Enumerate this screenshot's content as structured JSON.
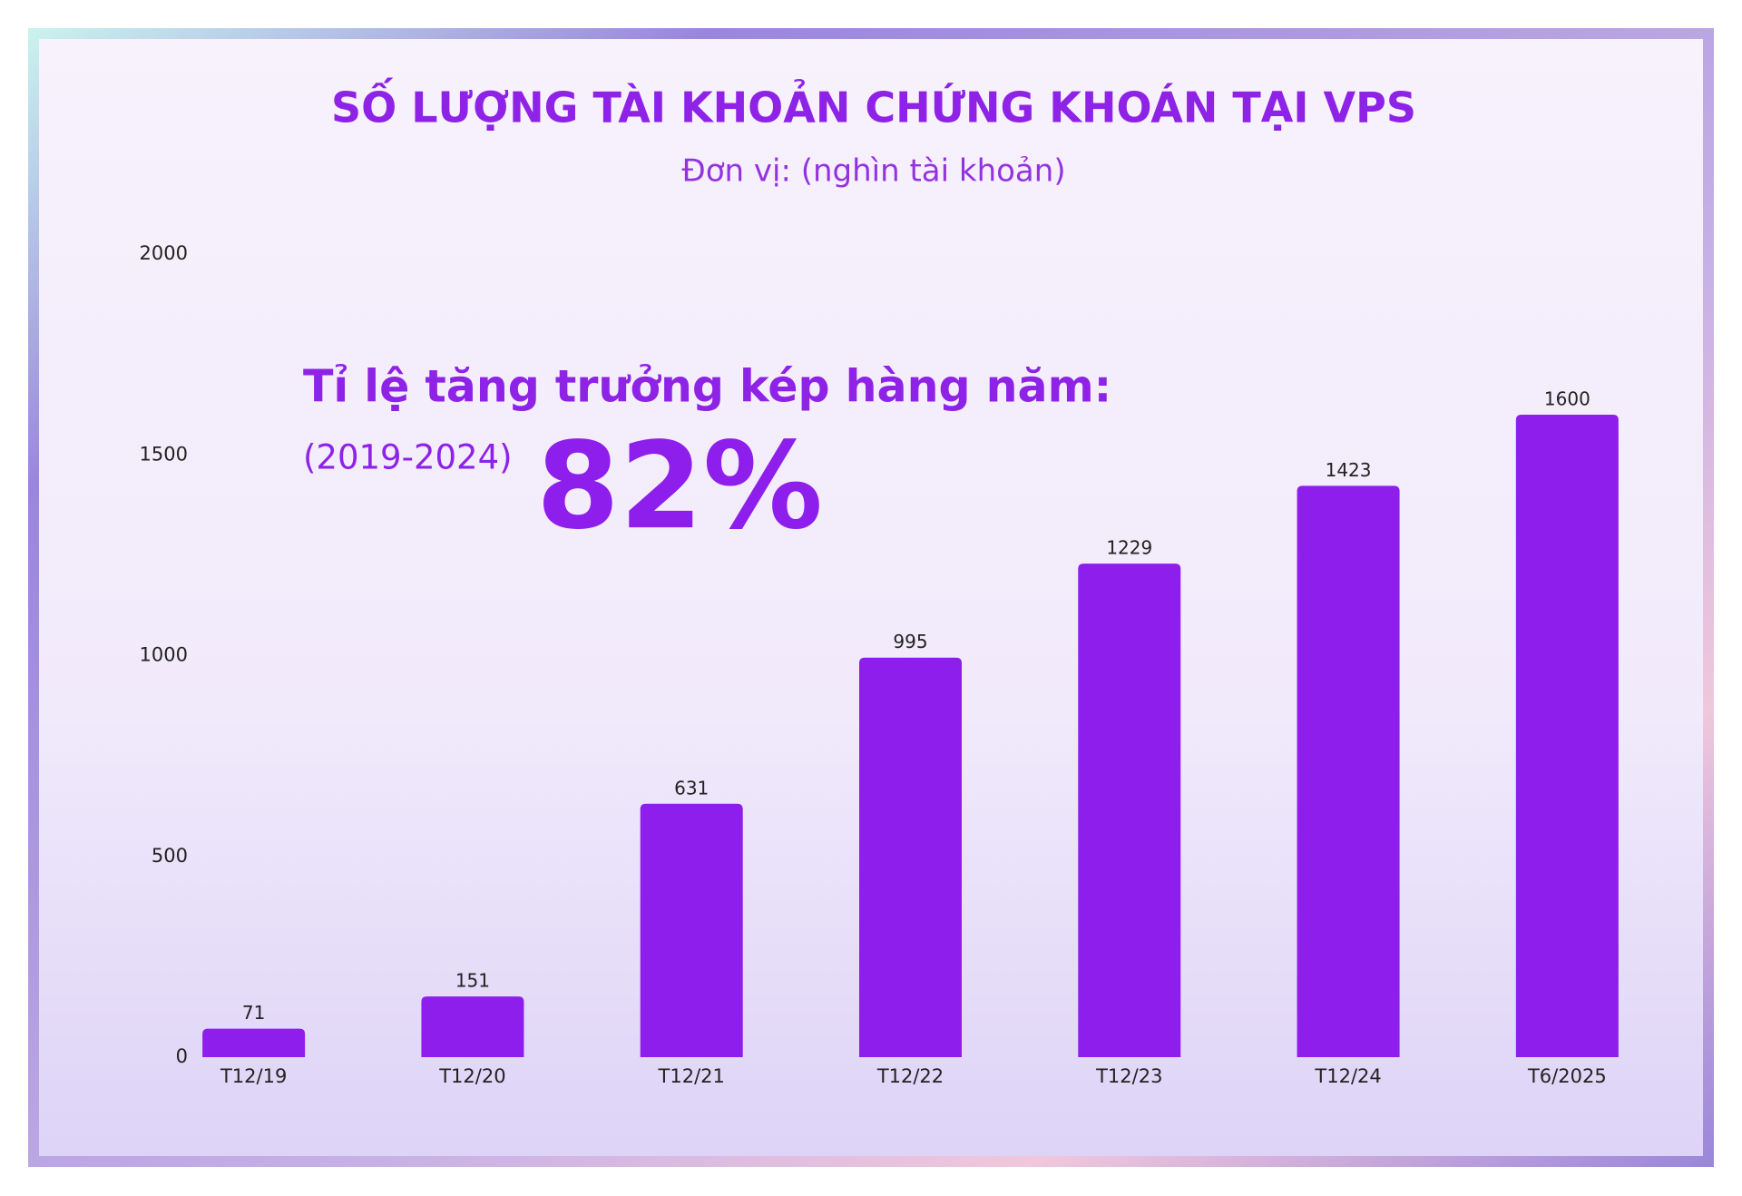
{
  "chart_data": {
    "type": "bar",
    "title": "SỐ LƯỢNG TÀI KHOẢN CHỨNG KHOÁN TẠI VPS",
    "subtitle": "Đơn vị: (nghìn tài khoản)",
    "categories": [
      "T12/19",
      "T12/20",
      "T12/21",
      "T12/22",
      "T12/23",
      "T12/24",
      "T6/2025"
    ],
    "values": [
      71,
      151,
      631,
      995,
      1229,
      1423,
      1600
    ],
    "color": "#8e1eec",
    "ylim": [
      0,
      2000
    ],
    "yticks": [
      0,
      500,
      1000,
      1500,
      2000
    ],
    "grid": false,
    "annotations": [
      "Tỉ lệ tăng trưởng kép hàng năm:",
      "(2019-2024)",
      "82%"
    ]
  }
}
